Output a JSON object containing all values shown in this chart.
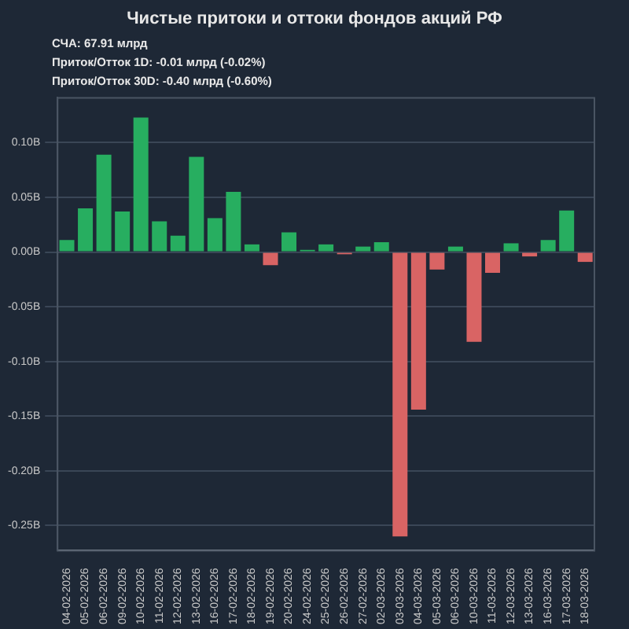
{
  "chart_data": {
    "type": "bar",
    "title": "Чистые притоки и оттоки фондов акций РФ",
    "annotations": [
      "СЧА: 67.91 млрд",
      "Приток/Отток 1D: -0.01 млрд (-0.02%)",
      "Приток/Отток 30D: -0.40 млрд (-0.60%)"
    ],
    "categories": [
      "04-02-2026",
      "05-02-2026",
      "06-02-2026",
      "09-02-2026",
      "10-02-2026",
      "11-02-2026",
      "12-02-2026",
      "13-02-2026",
      "16-02-2026",
      "17-02-2026",
      "18-02-2026",
      "19-02-2026",
      "20-02-2026",
      "24-02-2026",
      "25-02-2026",
      "26-02-2026",
      "27-02-2026",
      "02-03-2026",
      "03-03-2026",
      "04-03-2026",
      "05-03-2026",
      "06-03-2026",
      "10-03-2026",
      "11-03-2026",
      "12-03-2026",
      "13-03-2026",
      "16-03-2026",
      "17-03-2026",
      "18-03-2026"
    ],
    "values": [
      0.011,
      0.04,
      0.089,
      0.037,
      0.123,
      0.028,
      0.015,
      0.087,
      0.031,
      0.055,
      0.007,
      -0.012,
      0.018,
      0.002,
      0.007,
      -0.002,
      0.005,
      0.009,
      -0.26,
      -0.144,
      -0.016,
      0.005,
      -0.082,
      -0.019,
      0.008,
      -0.004,
      0.011,
      0.038,
      -0.009
    ],
    "colors": [
      "#27ae60",
      "#27ae60",
      "#27ae60",
      "#27ae60",
      "#27ae60",
      "#27ae60",
      "#27ae60",
      "#27ae60",
      "#27ae60",
      "#27ae60",
      "#27ae60",
      "#d96464",
      "#27ae60",
      "#27ae60",
      "#27ae60",
      "#d96464",
      "#27ae60",
      "#27ae60",
      "#d96464",
      "#d96464",
      "#d96464",
      "#27ae60",
      "#d96464",
      "#d96464",
      "#27ae60",
      "#d96464",
      "#27ae60",
      "#27ae60",
      "#d96464"
    ],
    "ylim": [
      -0.273,
      0.141
    ],
    "yticks": [
      {
        "value": -0.25,
        "label": "-0.25B"
      },
      {
        "value": -0.2,
        "label": "-0.20B"
      },
      {
        "value": -0.15,
        "label": "-0.15B"
      },
      {
        "value": -0.1,
        "label": "-0.10B"
      },
      {
        "value": -0.05,
        "label": "-0.05B"
      },
      {
        "value": 0,
        "label": "0.00B"
      },
      {
        "value": 0.05,
        "label": "0.05B"
      },
      {
        "value": 0.1,
        "label": "0.10B"
      }
    ],
    "grid": "y",
    "legend": false
  }
}
